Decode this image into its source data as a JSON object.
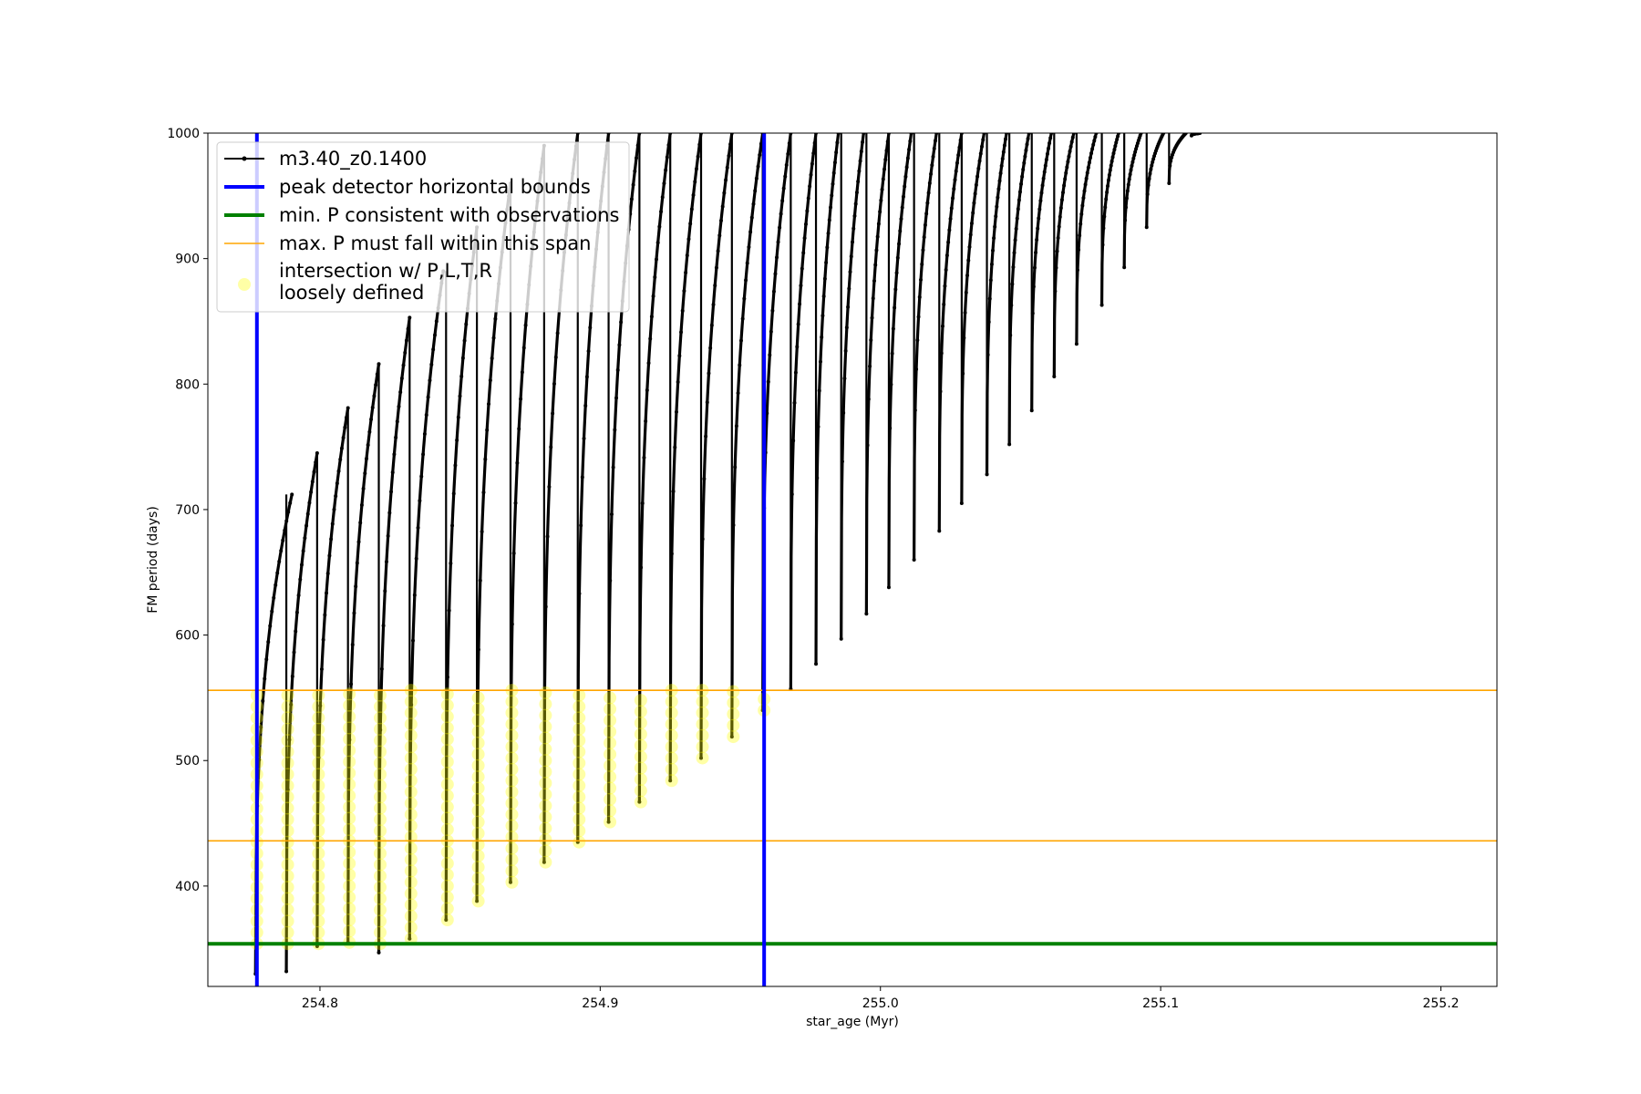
{
  "chart_data": {
    "type": "scatter",
    "title": "",
    "xlabel": "star_age (Myr)",
    "ylabel": "FM period (days)",
    "xlim": [
      254.76,
      255.22
    ],
    "ylim": [
      320,
      1000
    ],
    "xticks": [
      254.8,
      254.9,
      255.0,
      255.1,
      255.2
    ],
    "xtick_labels": [
      "254.8",
      "254.9",
      "255.0",
      "255.1",
      "255.2"
    ],
    "yticks": [
      400,
      500,
      600,
      700,
      800,
      900,
      1000
    ],
    "ytick_labels": [
      "400",
      "500",
      "600",
      "700",
      "800",
      "900",
      "1000"
    ],
    "grid": false,
    "legend_position": "top-left",
    "legend": [
      {
        "label": "m3.40_z0.1400",
        "style": "line-marker",
        "color": "#000000"
      },
      {
        "label": "peak detector horizontal bounds",
        "style": "thick-line",
        "color": "#0000ff"
      },
      {
        "label": "min. P consistent with observations",
        "style": "thick-line",
        "color": "#008000"
      },
      {
        "label": "max. P must fall within this span",
        "style": "thin-line",
        "color": "#ffa500"
      },
      {
        "label": "intersection w/ P,L,T,R\nloosely defined",
        "style": "circle",
        "color": "#ffff00"
      }
    ],
    "series": [
      {
        "name": "m3.40_z0.1400",
        "type": "pulse-track",
        "color": "#000000",
        "pulses": [
          {
            "x_min": 254.777,
            "x_peak": 254.79,
            "y_min": 330,
            "y_peak": 712
          },
          {
            "x_min": 254.788,
            "x_peak": 254.799,
            "y_min": 332,
            "y_peak": 745
          },
          {
            "x_min": 254.799,
            "x_peak": 254.81,
            "y_min": 352,
            "y_peak": 781
          },
          {
            "x_min": 254.81,
            "x_peak": 254.821,
            "y_min": 355,
            "y_peak": 816
          },
          {
            "x_min": 254.821,
            "x_peak": 254.832,
            "y_min": 347,
            "y_peak": 853
          },
          {
            "x_min": 254.832,
            "x_peak": 254.844,
            "y_min": 358,
            "y_peak": 890
          },
          {
            "x_min": 254.845,
            "x_peak": 254.856,
            "y_min": 373,
            "y_peak": 925
          },
          {
            "x_min": 254.856,
            "x_peak": 254.868,
            "y_min": 388,
            "y_peak": 960
          },
          {
            "x_min": 254.868,
            "x_peak": 254.88,
            "y_min": 403,
            "y_peak": 990
          },
          {
            "x_min": 254.88,
            "x_peak": 254.892,
            "y_min": 419,
            "y_peak": 1000
          },
          {
            "x_min": 254.892,
            "x_peak": 254.903,
            "y_min": 435,
            "y_peak": 1000
          },
          {
            "x_min": 254.903,
            "x_peak": 254.914,
            "y_min": 451,
            "y_peak": 1000
          },
          {
            "x_min": 254.914,
            "x_peak": 254.925,
            "y_min": 467,
            "y_peak": 1000
          },
          {
            "x_min": 254.925,
            "x_peak": 254.936,
            "y_min": 484,
            "y_peak": 1000
          },
          {
            "x_min": 254.936,
            "x_peak": 254.947,
            "y_min": 502,
            "y_peak": 1000
          },
          {
            "x_min": 254.947,
            "x_peak": 254.958,
            "y_min": 519,
            "y_peak": 1000
          },
          {
            "x_min": 254.958,
            "x_peak": 254.968,
            "y_min": 540,
            "y_peak": 1000
          },
          {
            "x_min": 254.968,
            "x_peak": 254.977,
            "y_min": 557,
            "y_peak": 1000
          },
          {
            "x_min": 254.977,
            "x_peak": 254.985,
            "y_min": 577,
            "y_peak": 1000
          },
          {
            "x_min": 254.986,
            "x_peak": 254.994,
            "y_min": 597,
            "y_peak": 1000
          },
          {
            "x_min": 254.995,
            "x_peak": 255.003,
            "y_min": 617,
            "y_peak": 1000
          },
          {
            "x_min": 255.003,
            "x_peak": 255.011,
            "y_min": 638,
            "y_peak": 1000
          },
          {
            "x_min": 255.012,
            "x_peak": 255.02,
            "y_min": 660,
            "y_peak": 1000
          },
          {
            "x_min": 255.021,
            "x_peak": 255.029,
            "y_min": 683,
            "y_peak": 1000
          },
          {
            "x_min": 255.029,
            "x_peak": 255.037,
            "y_min": 705,
            "y_peak": 1000
          },
          {
            "x_min": 255.038,
            "x_peak": 255.045,
            "y_min": 728,
            "y_peak": 1000
          },
          {
            "x_min": 255.046,
            "x_peak": 255.053,
            "y_min": 752,
            "y_peak": 1000
          },
          {
            "x_min": 255.054,
            "x_peak": 255.061,
            "y_min": 779,
            "y_peak": 1000
          },
          {
            "x_min": 255.062,
            "x_peak": 255.069,
            "y_min": 806,
            "y_peak": 1000
          },
          {
            "x_min": 255.07,
            "x_peak": 255.077,
            "y_min": 832,
            "y_peak": 1000
          },
          {
            "x_min": 255.079,
            "x_peak": 255.085,
            "y_min": 863,
            "y_peak": 1000
          },
          {
            "x_min": 255.087,
            "x_peak": 255.093,
            "y_min": 893,
            "y_peak": 1000
          },
          {
            "x_min": 255.095,
            "x_peak": 255.101,
            "y_min": 925,
            "y_peak": 1000
          },
          {
            "x_min": 255.103,
            "x_peak": 255.109,
            "y_min": 960,
            "y_peak": 1000
          },
          {
            "x_min": 255.111,
            "x_peak": 255.114,
            "y_min": 998,
            "y_peak": 1000
          }
        ]
      }
    ],
    "vertical_lines": [
      {
        "name": "peak detector horizontal bounds",
        "x": 254.7775,
        "color": "#0000ff"
      },
      {
        "name": "peak detector horizontal bounds",
        "x": 254.9585,
        "color": "#0000ff"
      }
    ],
    "horizontal_lines": [
      {
        "name": "min. P consistent with observations",
        "y": 354,
        "color": "#008000"
      },
      {
        "name": "max. P must fall within this span",
        "y": 436,
        "color": "#ffa500"
      },
      {
        "name": "max. P must fall within this span",
        "y": 556,
        "color": "#ffa500"
      }
    ],
    "highlight": {
      "name": "intersection w/ P,L,T,R loosely defined",
      "color": "#ffff00",
      "y_min": 354,
      "y_max": 556,
      "x_min": 254.7775,
      "x_max": 254.9585
    }
  }
}
